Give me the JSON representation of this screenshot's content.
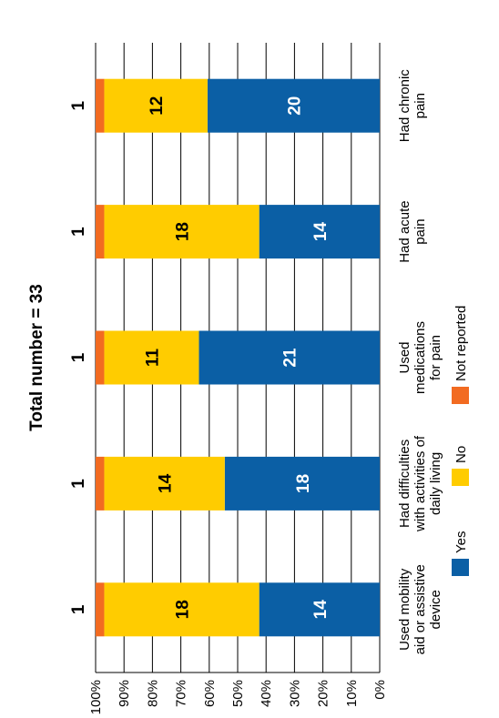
{
  "chart_data": {
    "type": "bar",
    "orientation": "stacked-100-percent",
    "title": "Total number = 33",
    "categories": [
      [
        "Used mobility",
        "aid or assistive",
        "device"
      ],
      [
        "Had difficulties",
        "with activities of",
        "daily living"
      ],
      [
        "Used",
        "medications",
        "for pain"
      ],
      [
        "Had acute",
        "pain"
      ],
      [
        "Had chronic",
        "pain"
      ]
    ],
    "series": [
      {
        "name": "Yes",
        "color": "#0b5fa5",
        "label_color": "#ffffff",
        "values": [
          14,
          18,
          21,
          14,
          20
        ]
      },
      {
        "name": "No",
        "color": "#ffcc00",
        "label_color": "#000000",
        "values": [
          18,
          14,
          11,
          18,
          12
        ]
      },
      {
        "name": "Not reported",
        "color": "#f26b21",
        "label_color": "#000000",
        "values": [
          1,
          1,
          1,
          1,
          1
        ]
      }
    ],
    "total": 33,
    "ylim": [
      0,
      100
    ],
    "yticks": [
      "0%",
      "10%",
      "20%",
      "30%",
      "40%",
      "50%",
      "60%",
      "70%",
      "80%",
      "90%",
      "100%"
    ],
    "grid": true,
    "legend_position": "bottom"
  }
}
